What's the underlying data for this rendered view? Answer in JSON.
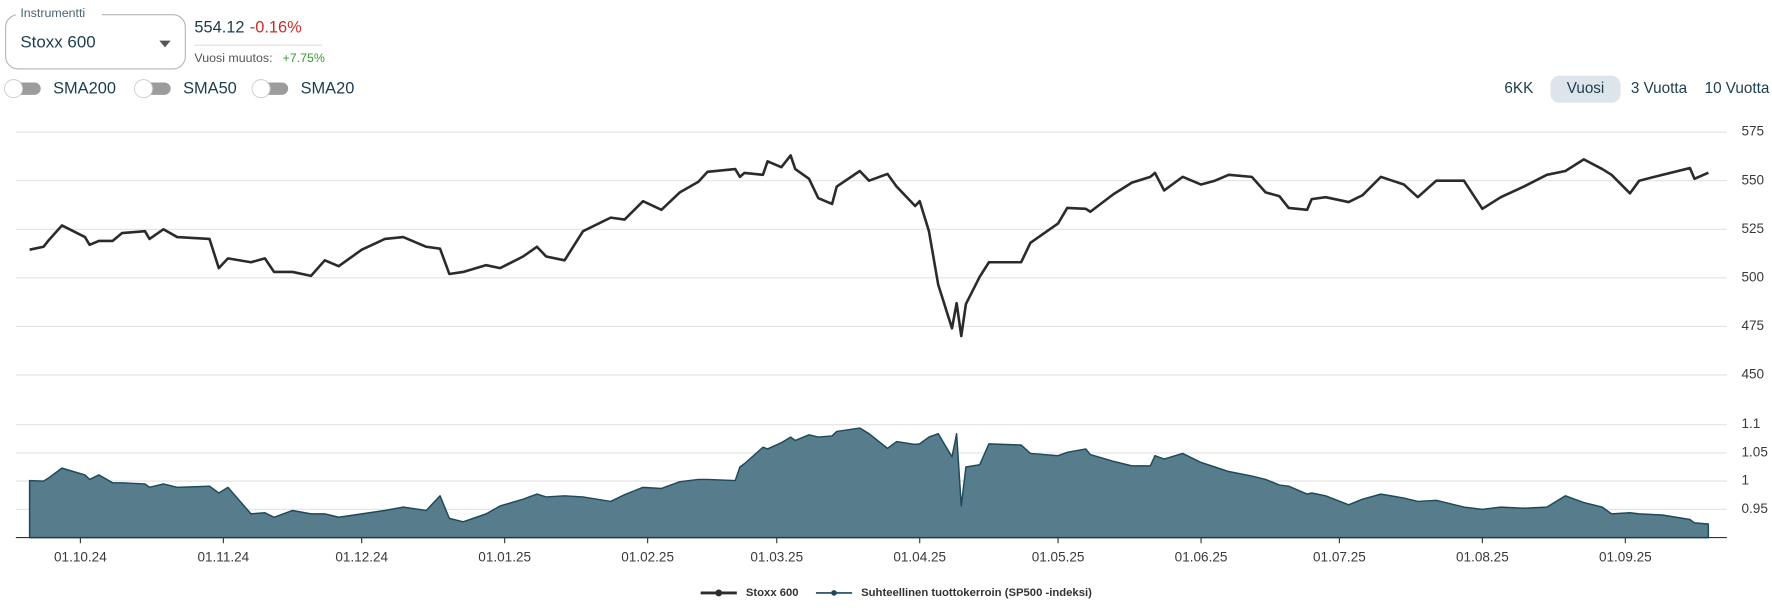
{
  "instrument_selector": {
    "label": "Instrumentti",
    "value": "Stoxx 600"
  },
  "quote": {
    "price": "554.12",
    "change": "-0.16%",
    "year_change_label": "Vuosi muutos:",
    "year_change": "+7.75%"
  },
  "toggles": [
    "SMA200",
    "SMA50",
    "SMA20"
  ],
  "range_buttons": {
    "options": [
      "6KK",
      "Vuosi",
      "3 Vuotta",
      "10 Vuotta"
    ],
    "selected": 1
  },
  "chart_data": [
    {
      "type": "line",
      "x": [
        "2024-09-20",
        "2024-09-23",
        "2024-09-24",
        "2024-09-27",
        "2024-10-02",
        "2024-10-03",
        "2024-10-05",
        "2024-10-08",
        "2024-10-10",
        "2024-10-15",
        "2024-10-16",
        "2024-10-19",
        "2024-10-22",
        "2024-10-29",
        "2024-10-31",
        "2024-11-02",
        "2024-11-07",
        "2024-11-10",
        "2024-11-12",
        "2024-11-16",
        "2024-11-20",
        "2024-11-23",
        "2024-11-26",
        "2024-12-01",
        "2024-12-06",
        "2024-12-10",
        "2024-12-15",
        "2024-12-18",
        "2024-12-20",
        "2024-12-23",
        "2024-12-28",
        "2024-12-31",
        "2025-01-05",
        "2025-01-08",
        "2025-01-10",
        "2025-01-14",
        "2025-01-18",
        "2025-01-24",
        "2025-01-27",
        "2025-01-31",
        "2025-02-04",
        "2025-02-08",
        "2025-02-12",
        "2025-02-14",
        "2025-02-20",
        "2025-02-21",
        "2025-02-22",
        "2025-02-26",
        "2025-02-27",
        "2025-03-02",
        "2025-03-04",
        "2025-03-05",
        "2025-03-08",
        "2025-03-10",
        "2025-03-13",
        "2025-03-14",
        "2025-03-19",
        "2025-03-21",
        "2025-03-25",
        "2025-03-27",
        "2025-03-31",
        "2025-04-01",
        "2025-04-03",
        "2025-04-05",
        "2025-04-08",
        "2025-04-09",
        "2025-04-10",
        "2025-04-11",
        "2025-04-14",
        "2025-04-16",
        "2025-04-23",
        "2025-04-25",
        "2025-05-01",
        "2025-05-03",
        "2025-05-07",
        "2025-05-08",
        "2025-05-13",
        "2025-05-17",
        "2025-05-21",
        "2025-05-22",
        "2025-05-24",
        "2025-05-28",
        "2025-06-01",
        "2025-06-04",
        "2025-06-07",
        "2025-06-12",
        "2025-06-15",
        "2025-06-18",
        "2025-06-20",
        "2025-06-24",
        "2025-06-25",
        "2025-06-28",
        "2025-07-03",
        "2025-07-06",
        "2025-07-10",
        "2025-07-15",
        "2025-07-18",
        "2025-07-22",
        "2025-07-28",
        "2025-08-01",
        "2025-08-05",
        "2025-08-10",
        "2025-08-15",
        "2025-08-19",
        "2025-08-23",
        "2025-08-27",
        "2025-08-29",
        "2025-09-02",
        "2025-09-04",
        "2025-09-09",
        "2025-09-15",
        "2025-09-16",
        "2025-09-19"
      ],
      "series": [
        {
          "name": "Stoxx 600",
          "color": "#2b2b2b",
          "values": [
            514.5,
            516,
            519,
            527,
            521,
            517,
            519,
            519,
            523,
            524,
            520,
            525,
            521,
            520,
            505,
            510,
            508,
            510,
            503,
            503,
            501,
            509,
            506,
            514.5,
            520,
            521,
            516,
            515,
            502,
            503,
            506.5,
            505,
            511,
            516,
            511,
            509,
            524,
            531,
            530,
            539.5,
            535,
            544,
            549.5,
            554.6,
            556,
            552,
            554,
            553,
            560,
            557,
            563,
            556,
            551,
            541,
            538,
            547,
            555,
            550,
            553.5,
            547,
            537,
            539.5,
            524,
            496.5,
            474,
            487,
            470,
            486.5,
            500.5,
            508,
            508,
            518,
            528,
            536,
            535.5,
            534,
            543,
            549,
            552,
            554,
            545,
            552,
            548,
            550,
            553,
            552,
            544,
            542,
            536,
            535,
            540.5,
            541.5,
            539,
            542.5,
            552,
            548,
            541.5,
            550,
            550,
            535.5,
            541.5,
            547,
            553,
            555,
            561,
            556,
            553,
            543.5,
            550,
            553,
            556.5,
            551,
            554.12
          ]
        }
      ],
      "xlim": [
        "2024-09-17",
        "2025-09-23"
      ],
      "ylim": [
        450,
        575
      ],
      "yticks": [
        450,
        475,
        500,
        525,
        550,
        575
      ],
      "grid": true
    },
    {
      "type": "area",
      "x": [
        "2024-09-20",
        "2024-09-23",
        "2024-09-24",
        "2024-09-27",
        "2024-10-02",
        "2024-10-03",
        "2024-10-05",
        "2024-10-08",
        "2024-10-10",
        "2024-10-15",
        "2024-10-16",
        "2024-10-19",
        "2024-10-22",
        "2024-10-29",
        "2024-10-31",
        "2024-11-02",
        "2024-11-07",
        "2024-11-10",
        "2024-11-12",
        "2024-11-16",
        "2024-11-20",
        "2024-11-23",
        "2024-11-26",
        "2024-12-01",
        "2024-12-06",
        "2024-12-10",
        "2024-12-15",
        "2024-12-18",
        "2024-12-20",
        "2024-12-23",
        "2024-12-28",
        "2024-12-31",
        "2025-01-05",
        "2025-01-08",
        "2025-01-10",
        "2025-01-14",
        "2025-01-18",
        "2025-01-24",
        "2025-01-27",
        "2025-01-31",
        "2025-02-04",
        "2025-02-08",
        "2025-02-12",
        "2025-02-14",
        "2025-02-20",
        "2025-02-21",
        "2025-02-22",
        "2025-02-26",
        "2025-02-27",
        "2025-03-02",
        "2025-03-04",
        "2025-03-05",
        "2025-03-08",
        "2025-03-10",
        "2025-03-13",
        "2025-03-14",
        "2025-03-19",
        "2025-03-21",
        "2025-03-25",
        "2025-03-27",
        "2025-03-31",
        "2025-04-01",
        "2025-04-03",
        "2025-04-05",
        "2025-04-08",
        "2025-04-09",
        "2025-04-10",
        "2025-04-11",
        "2025-04-14",
        "2025-04-16",
        "2025-04-23",
        "2025-04-25",
        "2025-05-01",
        "2025-05-03",
        "2025-05-07",
        "2025-05-08",
        "2025-05-13",
        "2025-05-17",
        "2025-05-21",
        "2025-05-22",
        "2025-05-24",
        "2025-05-28",
        "2025-06-01",
        "2025-06-04",
        "2025-06-07",
        "2025-06-12",
        "2025-06-15",
        "2025-06-18",
        "2025-06-20",
        "2025-06-24",
        "2025-06-25",
        "2025-06-28",
        "2025-07-03",
        "2025-07-06",
        "2025-07-10",
        "2025-07-15",
        "2025-07-18",
        "2025-07-22",
        "2025-07-28",
        "2025-08-01",
        "2025-08-05",
        "2025-08-10",
        "2025-08-15",
        "2025-08-19",
        "2025-08-23",
        "2025-08-27",
        "2025-08-29",
        "2025-09-02",
        "2025-09-04",
        "2025-09-09",
        "2025-09-15",
        "2025-09-16",
        "2025-09-19"
      ],
      "series": [
        {
          "name": "Suhteellinen tuottokerroin (SP500 -indeksi)",
          "color": "#1d4a5b",
          "fill": "#577c8b",
          "values": [
            1.001,
            1.0,
            1.005,
            1.023,
            1.011,
            1.003,
            1.011,
            0.997,
            0.997,
            0.995,
            0.989,
            0.995,
            0.989,
            0.991,
            0.979,
            0.989,
            0.942,
            0.944,
            0.936,
            0.948,
            0.942,
            0.942,
            0.936,
            0.942,
            0.948,
            0.954,
            0.948,
            0.974,
            0.934,
            0.928,
            0.942,
            0.956,
            0.968,
            0.977,
            0.972,
            0.974,
            0.972,
            0.964,
            0.976,
            0.989,
            0.987,
            0.999,
            1.003,
            1.003,
            1.001,
            1.025,
            1.031,
            1.06,
            1.057,
            1.068,
            1.078,
            1.072,
            1.082,
            1.078,
            1.08,
            1.088,
            1.094,
            1.084,
            1.058,
            1.07,
            1.065,
            1.066,
            1.078,
            1.084,
            1.043,
            1.084,
            0.956,
            1.025,
            1.029,
            1.066,
            1.064,
            1.049,
            1.045,
            1.051,
            1.057,
            1.047,
            1.035,
            1.027,
            1.027,
            1.045,
            1.039,
            1.049,
            1.033,
            1.025,
            1.017,
            1.009,
            1.003,
            0.993,
            0.991,
            0.977,
            0.979,
            0.974,
            0.958,
            0.968,
            0.977,
            0.97,
            0.964,
            0.966,
            0.954,
            0.95,
            0.954,
            0.952,
            0.954,
            0.974,
            0.962,
            0.954,
            0.942,
            0.944,
            0.942,
            0.94,
            0.932,
            0.926,
            0.924
          ]
        }
      ],
      "xlim": [
        "2024-09-17",
        "2025-09-23"
      ],
      "ylim": [
        0.9,
        1.1
      ],
      "yticks": [
        0.95,
        1,
        1.05,
        1.1
      ],
      "grid": true,
      "xticks": [
        {
          "value": "2024-10-01",
          "label": "01.10.24"
        },
        {
          "value": "2024-11-01",
          "label": "01.11.24"
        },
        {
          "value": "2024-12-01",
          "label": "01.12.24"
        },
        {
          "value": "2025-01-01",
          "label": "01.01.25"
        },
        {
          "value": "2025-02-01",
          "label": "01.02.25"
        },
        {
          "value": "2025-03-01",
          "label": "01.03.25"
        },
        {
          "value": "2025-04-01",
          "label": "01.04.25"
        },
        {
          "value": "2025-05-01",
          "label": "01.05.25"
        },
        {
          "value": "2025-06-01",
          "label": "01.06.25"
        },
        {
          "value": "2025-07-01",
          "label": "01.07.25"
        },
        {
          "value": "2025-08-01",
          "label": "01.08.25"
        },
        {
          "value": "2025-09-01",
          "label": "01.09.25"
        }
      ]
    }
  ]
}
